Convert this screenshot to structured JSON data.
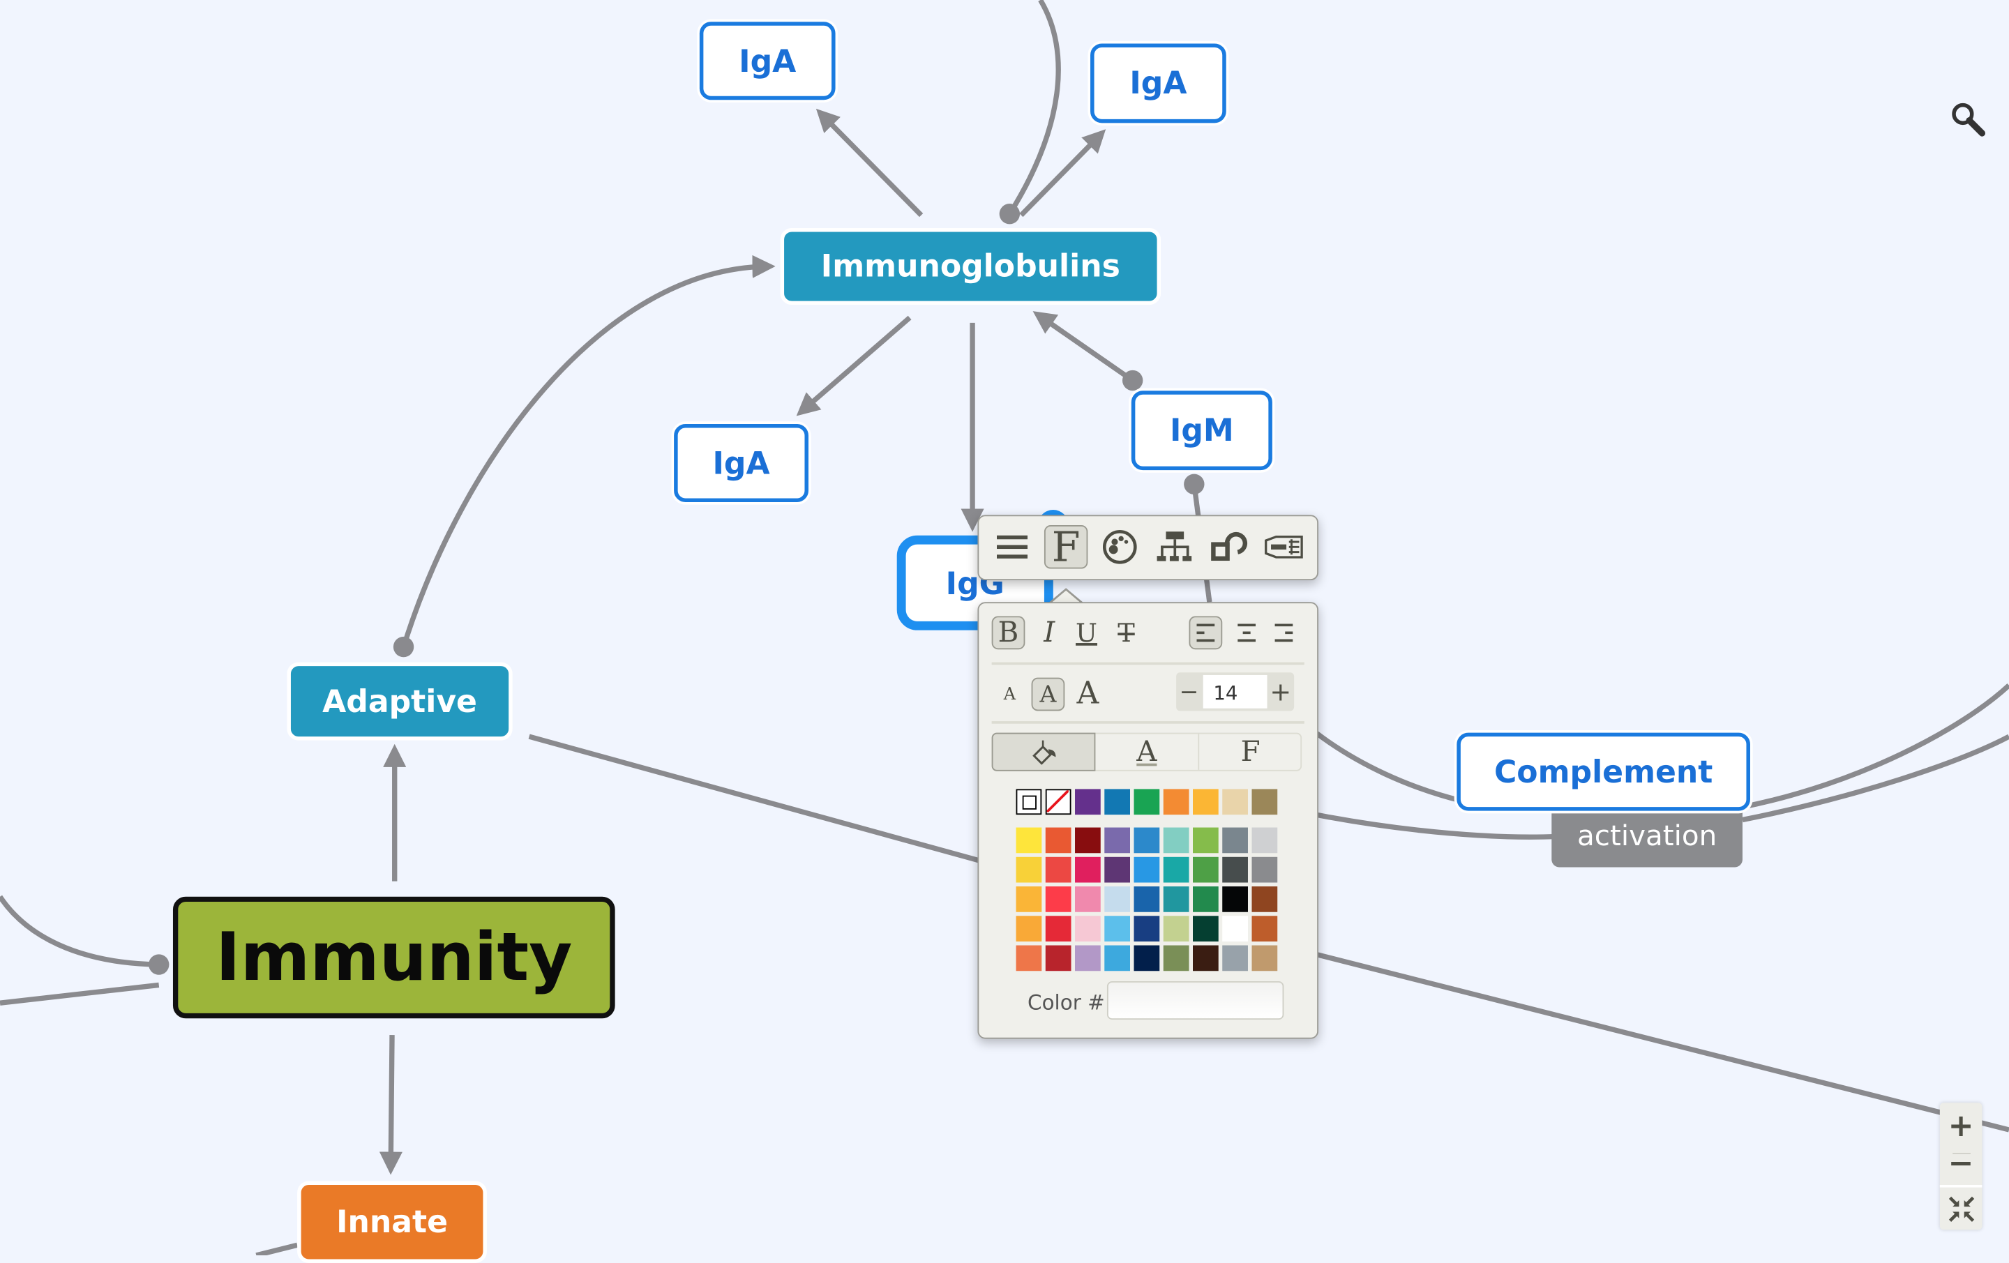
{
  "nodes": {
    "iga_top_left": "IgA",
    "iga_top_right": "IgA",
    "immunoglobulins": "Immunoglobulins",
    "iga_left": "IgA",
    "igm": "IgM",
    "igg": "IgG",
    "adaptive": "Adaptive",
    "immunity": "Immunity",
    "innate": "Innate",
    "complement": "Complement"
  },
  "relationship_labels": {
    "complement_activation": "activation"
  },
  "toolbar": {
    "icons": [
      "menu-icon",
      "font-format-icon",
      "palette-icon",
      "structure-icon",
      "relationship-icon",
      "topic-shape-icon"
    ],
    "active": "font-format-icon"
  },
  "format_panel": {
    "bold": "B",
    "italic": "I",
    "underline": "U",
    "strikethrough": "T",
    "size_small": "A",
    "size_medium": "A",
    "size_large": "A",
    "font_size": "14",
    "decrement": "−",
    "increment": "+",
    "tab_text_color": "A",
    "tab_font": "F",
    "color_label": "Color #",
    "color_value": "",
    "palette_top": [
      "#ffffff",
      "none",
      "#64308c",
      "#1278b3",
      "#19a453",
      "#f38b33",
      "#fbb634",
      "#e9d4aa",
      "#9b8759"
    ],
    "palette_grid": [
      [
        "#fee53b",
        "#e95932",
        "#880d0f",
        "#7a6aac",
        "#2c89cb",
        "#82cec2",
        "#85bc4b",
        "#7a868e",
        "#cfd0d2"
      ],
      [
        "#f8d138",
        "#ec4843",
        "#e01f5e",
        "#5e3674",
        "#2898e4",
        "#19a8a6",
        "#4ea046",
        "#474d4d",
        "#8a8b8e"
      ],
      [
        "#fab537",
        "#fd3c49",
        "#f089ad",
        "#c5dced",
        "#1964ab",
        "#20979f",
        "#228a4d",
        "#050607",
        "#8f4520"
      ],
      [
        "#f9a937",
        "#e52937",
        "#f6c8d4",
        "#5cbfeb",
        "#183e82",
        "#c3d190",
        "#053f31",
        "#ffffff",
        "#be5d2b"
      ],
      [
        "#ee7649",
        "#b8242c",
        "#b298c7",
        "#3da9de",
        "#021f4b",
        "#7a8f57",
        "#3a1d12",
        "#98a2aa",
        "#c09a6d"
      ]
    ]
  },
  "zoom_controls": {
    "zoom_in": "+",
    "zoom_out": "−"
  },
  "colors": {
    "accent": "#1a7be0",
    "teal": "#2399bf",
    "root": "#9cb53a",
    "orange": "#ea7a27",
    "edge": "#8a8a8e",
    "background": "#f1f5fe"
  }
}
